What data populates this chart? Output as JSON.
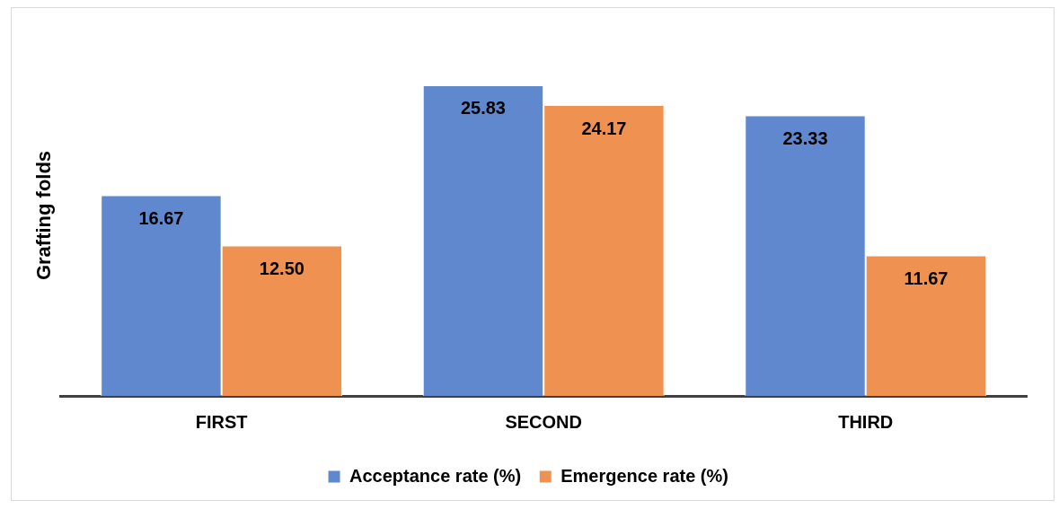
{
  "chart_data": {
    "type": "bar",
    "ylabel": "Grafting folds",
    "categories": [
      "FIRST",
      "SECOND",
      "THIRD"
    ],
    "series": [
      {
        "name": "Acceptance rate (%)",
        "color": "#6088cf",
        "values": [
          16.67,
          25.83,
          23.33
        ],
        "value_labels": [
          "16.67",
          "25.83",
          "23.33"
        ]
      },
      {
        "name": "Emergence rate (%)",
        "color": "#ef9150",
        "values": [
          12.5,
          24.17,
          11.67
        ],
        "value_labels": [
          "12.50",
          "24.17",
          "11.67"
        ]
      }
    ],
    "tick_labels": "x",
    "grid": false,
    "legend": "bottom"
  }
}
